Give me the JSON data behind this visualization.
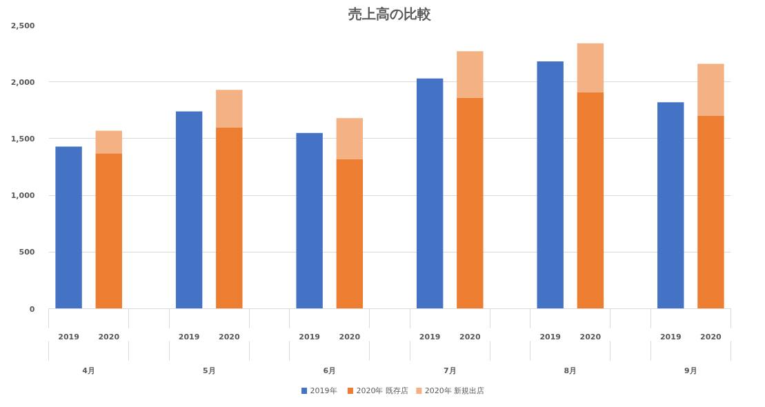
{
  "chart_data": {
    "type": "bar",
    "title": "売上高の比較",
    "categories": [
      "2019",
      "2020",
      null,
      "2019",
      "2020",
      null,
      "2019",
      "2020",
      null,
      "2019",
      "2020",
      null,
      "2019",
      "2020",
      null,
      "2019",
      "2020"
    ],
    "annotations": [
      "4月",
      "5月",
      "6月",
      "7月",
      "8月",
      "9月"
    ],
    "stacked": true,
    "series": [
      {
        "name": "2019年",
        "color": "#4472c4",
        "values": [
          1430,
          null,
          null,
          1740,
          null,
          null,
          1550,
          null,
          null,
          2030,
          null,
          null,
          2180,
          null,
          null,
          1820,
          null
        ]
      },
      {
        "name": "2020年 既存店",
        "color": "#ed7d31",
        "values": [
          null,
          1370,
          null,
          null,
          1600,
          null,
          null,
          1320,
          null,
          null,
          1860,
          null,
          null,
          1910,
          null,
          null,
          1700
        ]
      },
      {
        "name": "2020年 新規出店",
        "color": "#f4b183",
        "values": [
          null,
          200,
          null,
          null,
          330,
          null,
          null,
          360,
          null,
          null,
          410,
          null,
          null,
          430,
          null,
          null,
          460
        ]
      }
    ],
    "ylim": [
      0,
      2500
    ],
    "yticks": [
      0,
      500,
      {
        "value": 1000,
        "label": "1,000"
      },
      {
        "value": 1500,
        "label": "1,500"
      },
      {
        "value": 2000,
        "label": "2,000"
      },
      {
        "value": 2500,
        "label": "2,500"
      }
    ],
    "grid": "y",
    "legend": "bottom"
  }
}
